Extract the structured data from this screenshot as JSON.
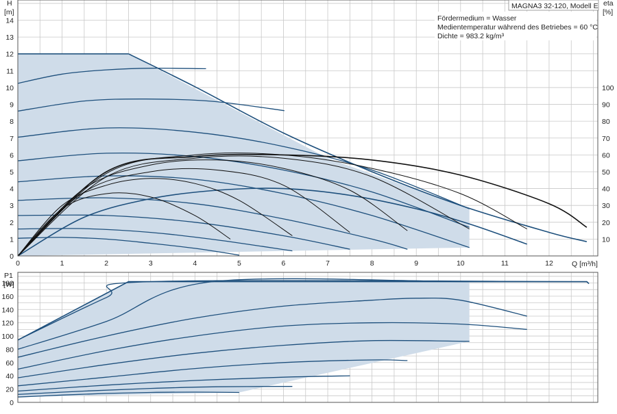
{
  "colors": {
    "area_fill": "#cfdce9",
    "curve_blue": "#1d4f7c",
    "curve_black": "#111111",
    "grid": "#c8c8c8"
  },
  "header": {
    "model_title": "MAGNA3 32-120, Modell E",
    "medium_line": "Fördermedium = Wasser",
    "temperature_line": "Medientemperatur während des Betriebes = 60 °C",
    "density_line": "Dichte = 983.2 kg/m³"
  },
  "chart_data": [
    {
      "type": "line",
      "title": "",
      "ylabel_name": "H",
      "ylabel_unit": "[m]",
      "y2label_name": "eta",
      "y2label_unit": "[%]",
      "xlabel": "Q [m³/h]",
      "xlim": [
        0,
        13.1
      ],
      "ylim": [
        0,
        15.2
      ],
      "y2lim": [
        0,
        152
      ],
      "xticks": [
        "0",
        "1",
        "2",
        "3",
        "4",
        "5",
        "6",
        "7",
        "8",
        "9",
        "10",
        "11",
        "12"
      ],
      "yticks": [
        "0",
        "1",
        "2",
        "3",
        "4",
        "5",
        "6",
        "7",
        "8",
        "9",
        "10",
        "11",
        "12",
        "13",
        "14"
      ],
      "y2ticks": [
        "10",
        "20",
        "30",
        "40",
        "50",
        "60",
        "70",
        "80",
        "90",
        "100"
      ],
      "grid": true,
      "operating_area": {
        "x": [
          0,
          2.5,
          7,
          10.2,
          10.2,
          0
        ],
        "y": [
          12,
          12,
          5.8,
          2.8,
          0.5,
          0
        ]
      },
      "head_curves": [
        {
          "x": [
            0,
            1,
            2,
            3,
            4,
            5
          ],
          "y": [
            1.05,
            1.1,
            1.0,
            0.75,
            0.45,
            0.05
          ]
        },
        {
          "x": [
            0,
            1.5,
            3,
            4.5,
            6.2
          ],
          "y": [
            1.6,
            1.62,
            1.4,
            0.95,
            0.3
          ]
        },
        {
          "x": [
            0,
            2,
            4,
            6,
            7.5
          ],
          "y": [
            2.4,
            2.4,
            2.0,
            1.2,
            0.4
          ]
        },
        {
          "x": [
            0,
            2,
            4,
            6,
            8,
            8.8
          ],
          "y": [
            3.3,
            3.45,
            3.1,
            2.2,
            1.0,
            0.4
          ]
        },
        {
          "x": [
            0,
            2,
            4,
            6,
            8,
            10.2
          ],
          "y": [
            4.4,
            4.75,
            4.55,
            3.7,
            2.4,
            0.5
          ]
        },
        {
          "x": [
            0,
            2,
            4,
            6,
            8,
            10.2
          ],
          "y": [
            5.65,
            6.1,
            5.9,
            5.1,
            3.8,
            1.7
          ]
        },
        {
          "x": [
            0,
            2,
            4,
            6,
            8,
            10.2
          ],
          "y": [
            7.05,
            7.6,
            7.35,
            6.5,
            5.1,
            2.8
          ]
        },
        {
          "x": [
            0,
            1.5,
            2.9,
            4.4,
            6.02
          ],
          "y": [
            8.6,
            9.2,
            9.32,
            9.18,
            8.63
          ]
        },
        {
          "x": [
            0,
            1,
            2,
            3,
            4.25
          ],
          "y": [
            10.25,
            10.8,
            11.05,
            11.15,
            11.12
          ]
        },
        {
          "x": [
            0,
            1.5,
            3,
            4.5,
            6,
            7.5,
            9,
            10.2,
            11.5
          ],
          "y": [
            0,
            2.3,
            3.4,
            3.9,
            4.0,
            3.6,
            2.8,
            1.9,
            0.7
          ]
        },
        {
          "x": [
            2.5,
            4,
            6,
            8,
            10,
            12,
            12.85
          ],
          "y": [
            12,
            10.05,
            7.3,
            5.0,
            3.0,
            1.4,
            0.85
          ]
        }
      ],
      "efficiency_curves": [
        {
          "x": [
            0,
            1,
            2,
            3,
            4,
            4.8
          ],
          "y": [
            0,
            28,
            37,
            35,
            24,
            10
          ]
        },
        {
          "x": [
            0,
            1,
            2,
            3,
            4,
            5,
            6.2
          ],
          "y": [
            0,
            30,
            42,
            46,
            43,
            33,
            12
          ]
        },
        {
          "x": [
            0,
            1.5,
            3,
            4.5,
            6,
            7.5
          ],
          "y": [
            0,
            38,
            50,
            51,
            42,
            14
          ]
        },
        {
          "x": [
            0,
            1.5,
            3,
            4.5,
            6,
            7.5,
            8.8
          ],
          "y": [
            0,
            40,
            54,
            57,
            52,
            39,
            15
          ]
        },
        {
          "x": [
            0,
            2,
            4,
            6,
            8,
            10.2
          ],
          "y": [
            0,
            47,
            58,
            58,
            47,
            16
          ]
        },
        {
          "x": [
            0,
            2,
            4,
            6,
            8,
            10,
            11.5
          ],
          "y": [
            0,
            49,
            60,
            60,
            52,
            37,
            16
          ]
        },
        {
          "x": [
            0,
            2,
            4,
            6,
            8,
            10,
            12,
            12.85
          ],
          "y": [
            0,
            50,
            59,
            60,
            57,
            48,
            31,
            17
          ]
        }
      ]
    },
    {
      "type": "line",
      "title": "",
      "ylabel_name": "P1",
      "ylabel_unit": "[W]",
      "xlim": [
        0,
        13.1
      ],
      "ylim": [
        0,
        196
      ],
      "yticks": [
        "0",
        "20",
        "40",
        "60",
        "80",
        "100",
        "120",
        "140",
        "160",
        "180"
      ],
      "grid": true,
      "operating_area": {
        "x": [
          0,
          2.5,
          10.2,
          10.2,
          5.0,
          0
        ],
        "y": [
          94,
          182,
          182,
          92,
          15,
          8
        ]
      },
      "power_curves": [
        {
          "x": [
            0,
            1,
            2,
            3,
            4,
            5
          ],
          "y": [
            8,
            11,
            13.5,
            15,
            15.5,
            15
          ]
        },
        {
          "x": [
            0,
            1.5,
            3,
            4.5,
            6.2
          ],
          "y": [
            12,
            17,
            21,
            23.5,
            24
          ]
        },
        {
          "x": [
            0,
            2,
            4,
            6,
            7.5
          ],
          "y": [
            17,
            26,
            33,
            38,
            40
          ]
        },
        {
          "x": [
            0,
            2,
            4,
            6,
            8,
            8.8
          ],
          "y": [
            25,
            38,
            51,
            60,
            64,
            63
          ]
        },
        {
          "x": [
            0,
            2,
            4,
            6,
            8,
            10.2
          ],
          "y": [
            37,
            57,
            74,
            86,
            93,
            92
          ]
        },
        {
          "x": [
            0,
            2,
            4,
            6,
            8,
            10,
            11.5
          ],
          "y": [
            50,
            78,
            100,
            115,
            120,
            118,
            110
          ]
        },
        {
          "x": [
            0,
            2,
            4,
            6,
            8,
            9,
            10,
            11.5
          ],
          "y": [
            68,
            100,
            127,
            145,
            154,
            157,
            154,
            130
          ]
        },
        {
          "x": [
            0,
            2,
            4.4,
            10.2,
            12.85
          ],
          "y": [
            80,
            122,
            182,
            182,
            182
          ]
        },
        {
          "x": [
            0,
            2,
            3,
            12.85
          ],
          "y": [
            94,
            158,
            182,
            182
          ]
        },
        {
          "x": [
            0,
            2.5,
            12.85,
            12.9
          ],
          "y": [
            94,
            182,
            182,
            179
          ]
        }
      ]
    }
  ]
}
